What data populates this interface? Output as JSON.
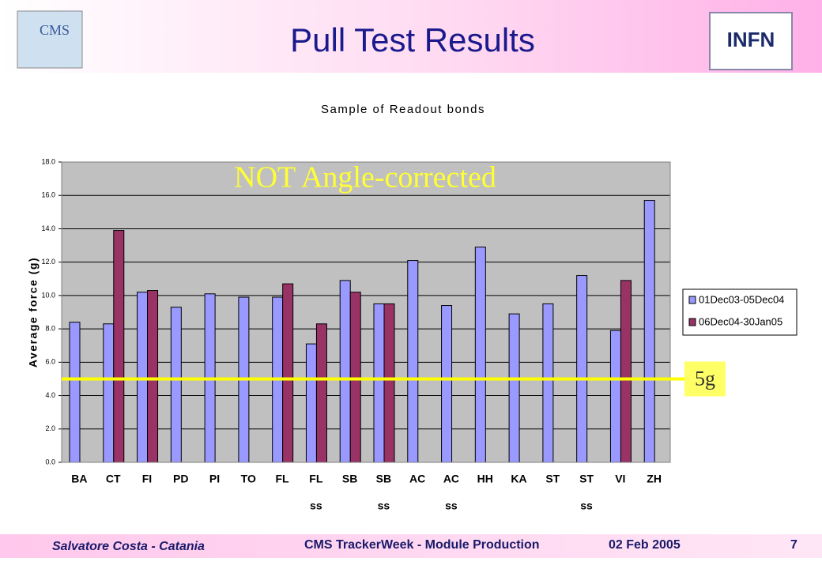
{
  "slide": {
    "title": "Pull Test Results",
    "logos": [
      "CMS",
      "INFN"
    ],
    "footer": {
      "author": "Salvatore Costa - Catania",
      "event": "CMS TrackerWeek - Module Production",
      "date": "02 Feb 2005",
      "page": "7"
    }
  },
  "chart_data": {
    "type": "bar",
    "title": "Sample of Readout bonds",
    "y_label": "Average force (g)",
    "categories": [
      [
        "BA"
      ],
      [
        "CT"
      ],
      [
        "FI"
      ],
      [
        "PD"
      ],
      [
        "PI"
      ],
      [
        "TO"
      ],
      [
        "FL"
      ],
      [
        "FL",
        "ss"
      ],
      [
        "SB"
      ],
      [
        "SB",
        "ss"
      ],
      [
        "AC"
      ],
      [
        "AC",
        "ss"
      ],
      [
        "HH"
      ],
      [
        "KA"
      ],
      [
        "ST"
      ],
      [
        "ST",
        "ss"
      ],
      [
        "VI"
      ],
      [
        "ZH"
      ]
    ],
    "series": [
      {
        "name": "01Dec03-05Dec04",
        "color": "#9999ff",
        "values": [
          8.4,
          8.3,
          10.2,
          9.3,
          10.1,
          9.9,
          9.9,
          7.1,
          10.9,
          9.5,
          12.1,
          9.4,
          12.9,
          8.9,
          9.5,
          11.2,
          7.9,
          15.7
        ]
      },
      {
        "name": "06Dec04-30Jan05",
        "color": "#993366",
        "values": [
          null,
          13.9,
          10.3,
          null,
          null,
          null,
          10.7,
          8.3,
          10.2,
          9.5,
          null,
          null,
          null,
          null,
          null,
          null,
          10.9,
          null
        ]
      }
    ],
    "ylim": [
      0,
      18
    ],
    "yticks": [
      {
        "value": 0,
        "label": "0.0"
      },
      {
        "value": 2,
        "label": "2.0"
      },
      {
        "value": 4,
        "label": "4.0"
      },
      {
        "value": 6,
        "label": "6.0"
      },
      {
        "value": 8,
        "label": "8.0"
      },
      {
        "value": 10,
        "label": "10.0"
      },
      {
        "value": 12,
        "label": "12.0"
      },
      {
        "value": 14,
        "label": "14.0"
      },
      {
        "value": 16,
        "label": "16.0"
      },
      {
        "value": 18,
        "label": "18.0"
      }
    ],
    "grid": true,
    "legend": "right",
    "annotations": [
      {
        "text": "NOT Angle-corrected"
      },
      {
        "text": "5g",
        "value": 5
      }
    ]
  }
}
